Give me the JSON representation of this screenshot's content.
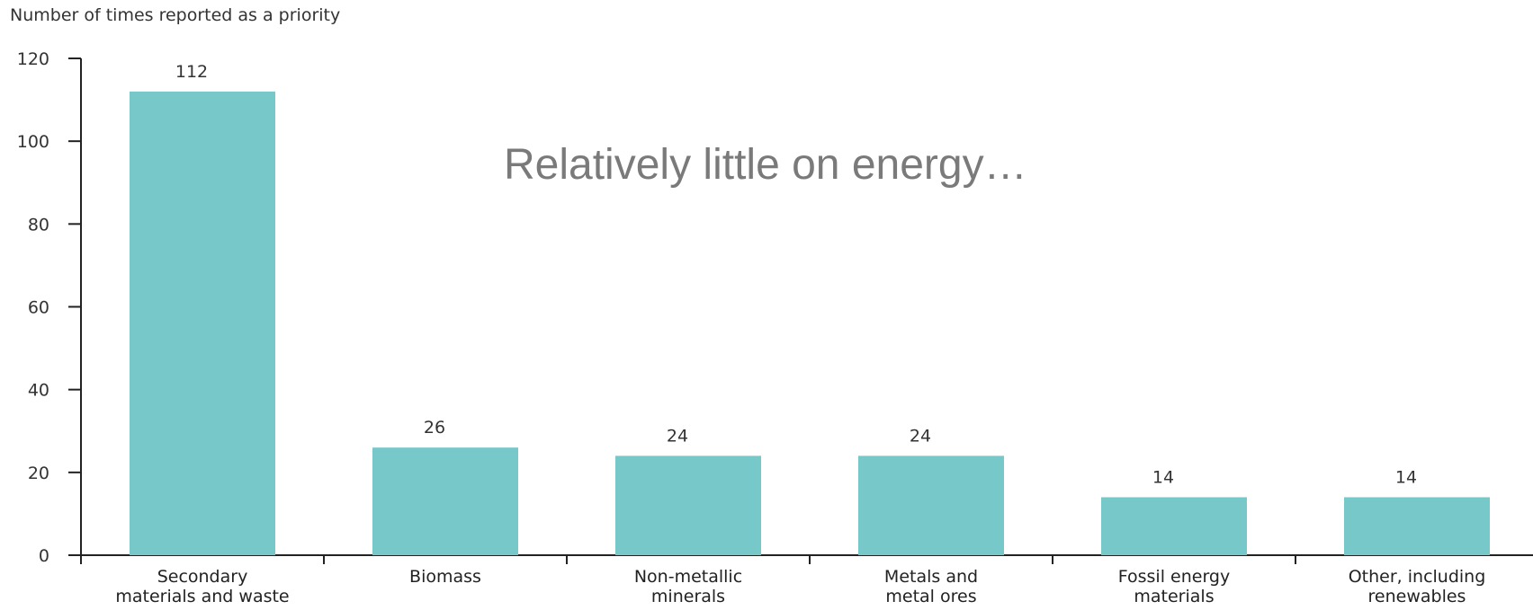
{
  "chart_data": {
    "type": "bar",
    "title": "",
    "xlabel": "",
    "ylabel": "Number of times reported as a priority",
    "categories": [
      [
        "Secondary",
        "materials and waste"
      ],
      [
        "Biomass"
      ],
      [
        "Non-metallic",
        "minerals"
      ],
      [
        "Metals and",
        "metal ores"
      ],
      [
        "Fossil energy",
        "materials"
      ],
      [
        "Other, including",
        "renewables"
      ]
    ],
    "values": [
      112,
      26,
      24,
      24,
      14,
      14
    ],
    "yticks": [
      0,
      20,
      40,
      60,
      80,
      100,
      120
    ],
    "ylim": [
      0,
      120
    ],
    "grid": false,
    "bar_color": "#76c9c8",
    "axis_color": "#222222",
    "annotation": "Relatively little on energy…"
  }
}
